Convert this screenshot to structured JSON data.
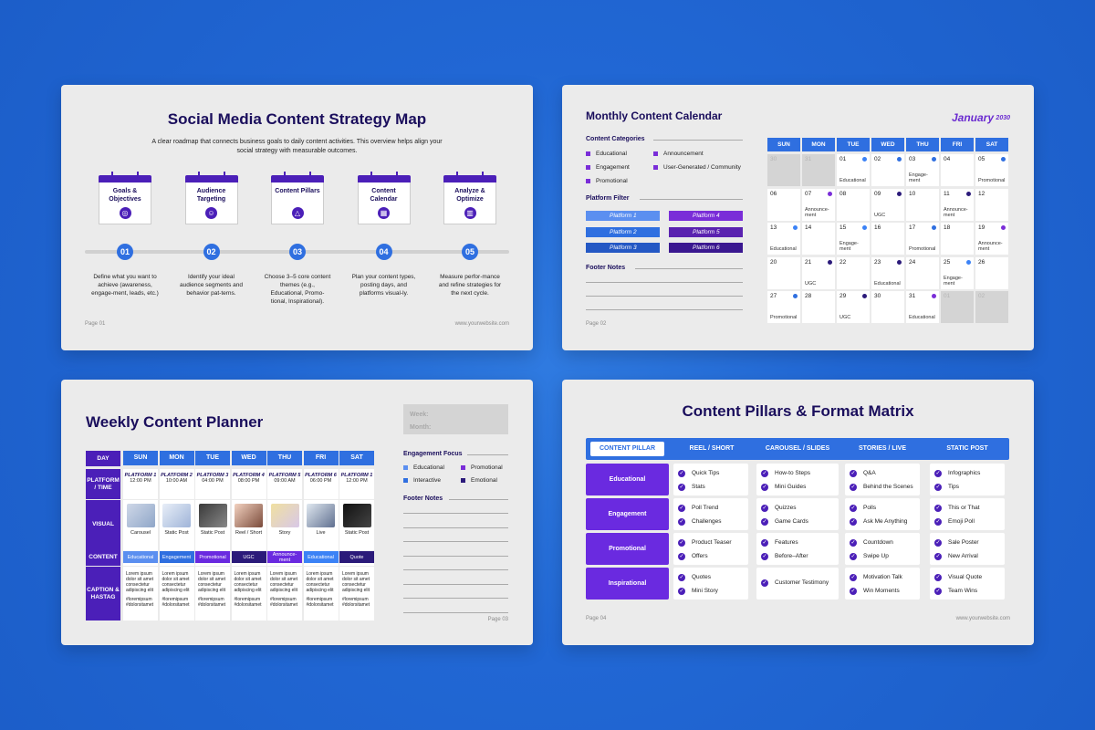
{
  "slide1": {
    "title": "Social Media Content Strategy Map",
    "subtitle": "A clear roadmap that connects business goals to daily content activities. This overview helps align your social strategy with measurable outcomes.",
    "steps": [
      {
        "label": "Goals & Objectives",
        "num": "01",
        "icon": "target-icon",
        "desc": "Define what you want to achieve (awareness, engage-ment, leads, etc.)"
      },
      {
        "label": "Audience Targeting",
        "num": "02",
        "icon": "user-head-icon",
        "desc": "Identify your ideal audience segments and behavior pat-terns."
      },
      {
        "label": "Content Pillars",
        "num": "03",
        "icon": "shapes-icon",
        "desc": "Choose 3–5 core content themes (e.g., Educational, Promo-tional, Inspirational)."
      },
      {
        "label": "Content Calendar",
        "num": "04",
        "icon": "calendar-icon",
        "desc": "Plan your content types, posting days, and platforms visual-ly."
      },
      {
        "label": "Analyze & Optimize",
        "num": "05",
        "icon": "chart-icon",
        "desc": "Measure perfor-mance and refine strategies for the next cycle."
      }
    ],
    "page": "Page 01",
    "url": "www.yourwebsite.com"
  },
  "slide2": {
    "title": "Monthly Content Calendar",
    "month": "January",
    "year": "2030",
    "categories_title": "Content Categories",
    "categories": [
      "Educational",
      "Engagement",
      "Promotional",
      "Announcement",
      "User-Generated / Community"
    ],
    "platform_filter_title": "Platform Filter",
    "platforms": [
      "Platform 1",
      "Platform 2",
      "Platform 3",
      "Platform 4",
      "Platform 5",
      "Platform 6"
    ],
    "footer_notes_title": "Footer Notes",
    "page": "Page 02",
    "days": [
      "SUN",
      "MON",
      "TUE",
      "WED",
      "THU",
      "FRI",
      "SAT"
    ],
    "cells": [
      {
        "d": "30",
        "gray": true
      },
      {
        "d": "31",
        "gray": true
      },
      {
        "d": "01",
        "dot": "#3b82f6",
        "label": "Educational"
      },
      {
        "d": "02",
        "dot": "#2f6fe0"
      },
      {
        "d": "03",
        "dot": "#2f6fe0",
        "label": "Engage-ment"
      },
      {
        "d": "04"
      },
      {
        "d": "05",
        "dot": "#2f6fe0",
        "label": "Promotional"
      },
      {
        "d": "06"
      },
      {
        "d": "07",
        "dot": "#7a2dd8",
        "label": "Announce-ment"
      },
      {
        "d": "08"
      },
      {
        "d": "09",
        "dot": "#2b1a7a",
        "label": "UGC"
      },
      {
        "d": "10"
      },
      {
        "d": "11",
        "dot": "#2b1a7a",
        "label": "Announce-ment"
      },
      {
        "d": "12"
      },
      {
        "d": "13",
        "dot": "#3b82f6",
        "label": "Educational"
      },
      {
        "d": "14"
      },
      {
        "d": "15",
        "dot": "#3b82f6",
        "label": "Engage-ment"
      },
      {
        "d": "16"
      },
      {
        "d": "17",
        "dot": "#2f6fe0",
        "label": "Promotional"
      },
      {
        "d": "18"
      },
      {
        "d": "19",
        "dot": "#7a2dd8",
        "label": "Announce-ment"
      },
      {
        "d": "20"
      },
      {
        "d": "21",
        "dot": "#2b1a7a",
        "label": "UGC"
      },
      {
        "d": "22"
      },
      {
        "d": "23",
        "dot": "#2b1a7a",
        "label": "Educational"
      },
      {
        "d": "24"
      },
      {
        "d": "25",
        "dot": "#3b82f6",
        "label": "Engage-ment"
      },
      {
        "d": "26"
      },
      {
        "d": "27",
        "dot": "#2f6fe0",
        "label": "Promotional"
      },
      {
        "d": "28"
      },
      {
        "d": "29",
        "dot": "#2b1a7a",
        "label": "UGC"
      },
      {
        "d": "30"
      },
      {
        "d": "31",
        "dot": "#7a2dd8",
        "label": "Educational"
      },
      {
        "d": "01",
        "gray": true
      },
      {
        "d": "02",
        "gray": true
      }
    ]
  },
  "slide3": {
    "title": "Weekly Content Planner",
    "week_label": "Week:",
    "month_label": "Month:",
    "day_header": "DAY",
    "days": [
      "SUN",
      "MON",
      "TUE",
      "WED",
      "THU",
      "FRI",
      "SAT"
    ],
    "row_labels": [
      "PLATFORM / TIME",
      "VISUAL",
      "CONTENT",
      "CAPTION & HASTAG"
    ],
    "platforms": [
      "PLATFORM 1",
      "PLATFORM 2",
      "PLATFORM 3",
      "PLATFORM 4",
      "PLATFORM 5",
      "PLATFORM 6",
      "PLATFORM 1"
    ],
    "times": [
      "12:00 PM",
      "10:00 AM",
      "04:00 PM",
      "08:00 PM",
      "09:00 AM",
      "06:00 PM",
      "12:00 PM"
    ],
    "visual_labels": [
      "Carousel",
      "Static Post",
      "Static Post",
      "Reel / Short",
      "Story",
      "Live",
      "Static Post"
    ],
    "content": [
      "Educational",
      "Engagement",
      "Promotional",
      "UGC",
      "Announce-ment",
      "Educational",
      "Quote"
    ],
    "content_colors": [
      "#5b8ff0",
      "#2f6fe0",
      "#6a2ae0",
      "#2b1a7a",
      "#6a2ae0",
      "#3b82f6",
      "#2b1a7a"
    ],
    "caption": "Lorem ipsum dolor sit amet consectetur adipiscing elit",
    "hashtags": "#loremipsum #dolorsitamet",
    "engagement_title": "Engagement Focus",
    "engagement": [
      "Educational",
      "Promotional",
      "Interactive",
      "Emotional"
    ],
    "footer_notes_title": "Footer Notes",
    "page": "Page 03"
  },
  "slide4": {
    "title": "Content Pillars & Format Matrix",
    "headers": [
      "CONTENT PILLAR",
      "REEL / SHORT",
      "CAROUSEL / SLIDES",
      "STORIES / LIVE",
      "STATIC POST"
    ],
    "rows": [
      {
        "pillar": "Educational",
        "cells": [
          [
            "Quick Tips",
            "Stats"
          ],
          [
            "How-to Steps",
            "Mini Guides"
          ],
          [
            "Q&A",
            "Behind the Scenes"
          ],
          [
            "Infographics",
            "Tips"
          ]
        ]
      },
      {
        "pillar": "Engagement",
        "cells": [
          [
            "Poll Trend",
            "Challenges"
          ],
          [
            "Quizzes",
            "Game Cards"
          ],
          [
            "Polls",
            "Ask Me Anything"
          ],
          [
            "This or That",
            "Emoji Poll"
          ]
        ]
      },
      {
        "pillar": "Promotional",
        "cells": [
          [
            "Product Teaser",
            "Offers"
          ],
          [
            "Features",
            "Before–After"
          ],
          [
            "Countdown",
            "Swipe Up"
          ],
          [
            "Sale Poster",
            "New Arrival"
          ]
        ]
      },
      {
        "pillar": "Inspirational",
        "cells": [
          [
            "Quotes",
            "Mini Story"
          ],
          [
            "Customer Testimony"
          ],
          [
            "Motivation Talk",
            "Win Moments"
          ],
          [
            "Visual Quote",
            "Team Wins"
          ]
        ]
      }
    ],
    "page": "Page 04",
    "url": "www.yourwebsite.com"
  }
}
